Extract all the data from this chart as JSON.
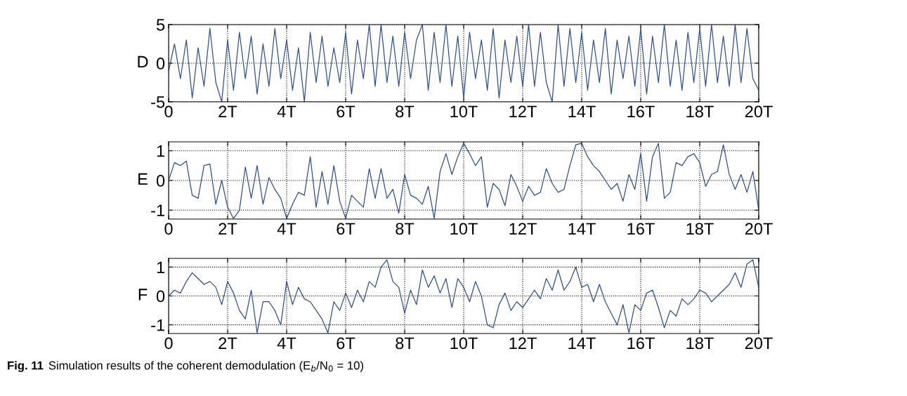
{
  "chart_data": [
    {
      "type": "line",
      "ylabel": "D",
      "xlim": [
        0,
        20
      ],
      "ylim": [
        -5,
        5
      ],
      "yticks": [
        -5,
        0,
        5
      ],
      "grid": true,
      "line_style": "solid",
      "xticks": [
        0,
        {
          "value": 2,
          "label": "2T"
        },
        {
          "value": 4,
          "label": "4T"
        },
        {
          "value": 6,
          "label": "6T"
        },
        {
          "value": 8,
          "label": "8T"
        },
        {
          "value": 10,
          "label": "10T"
        },
        {
          "value": 12,
          "label": "12T"
        },
        {
          "value": 14,
          "label": "14T"
        },
        {
          "value": 16,
          "label": "16T"
        },
        {
          "value": 18,
          "label": "18T"
        },
        {
          "value": 20,
          "label": "20T"
        }
      ],
      "x": [
        0,
        0.2,
        0.4,
        0.6,
        0.8,
        1,
        1.2,
        1.4,
        1.6,
        1.8,
        2,
        2.2,
        2.4,
        2.6,
        2.8,
        3,
        3.2,
        3.4,
        3.6,
        3.8,
        4,
        4.2,
        4.4,
        4.6,
        4.8,
        5,
        5.2,
        5.4,
        5.6,
        5.8,
        6,
        6.2,
        6.4,
        6.6,
        6.8,
        7,
        7.2,
        7.4,
        7.6,
        7.8,
        8,
        8.2,
        8.4,
        8.6,
        8.8,
        9,
        9.2,
        9.4,
        9.6,
        9.8,
        10,
        10.2,
        10.4,
        10.6,
        10.8,
        11,
        11.2,
        11.4,
        11.6,
        11.8,
        12,
        12.2,
        12.4,
        12.6,
        12.8,
        13,
        13.2,
        13.4,
        13.6,
        13.8,
        14,
        14.2,
        14.4,
        14.6,
        14.8,
        15,
        15.2,
        15.4,
        15.6,
        15.8,
        16,
        16.2,
        16.4,
        16.6,
        16.8,
        17,
        17.2,
        17.4,
        17.6,
        17.8,
        18,
        18.2,
        18.4,
        18.6,
        18.8,
        19,
        19.2,
        19.4,
        19.6,
        19.8,
        20
      ],
      "series": [
        {
          "color": "#2b4fa3",
          "values": [
            -1,
            2.5,
            -2,
            3,
            -4.5,
            2,
            -3,
            4.5,
            -2.5,
            -5,
            3,
            -3.5,
            4,
            -2,
            3.5,
            -4,
            2.5,
            -3,
            4.5,
            -2,
            3,
            -3.5,
            2,
            -5,
            4,
            -2.5,
            3.5,
            -3,
            2,
            -2.5,
            4,
            -4,
            3,
            -2,
            5,
            -3,
            5,
            -2.5,
            3.5,
            -3,
            4,
            -2,
            3,
            5,
            -3.5,
            4,
            -2.5,
            5,
            -3,
            3.5,
            -4.5,
            4,
            -2,
            3,
            -3.5,
            4.5,
            -4.5,
            3,
            -2.5,
            3.5,
            -3,
            5,
            -3,
            4,
            -2.5,
            -5,
            5,
            -3,
            4.5,
            -2.5,
            4,
            -3.5,
            3,
            -2.5,
            4.5,
            -4,
            3,
            -2,
            3.5,
            -3,
            4.5,
            -4,
            3.5,
            -2.5,
            5,
            -3,
            3,
            -3.5,
            4,
            -2.5,
            4.5,
            -3,
            5,
            -2.5,
            3.5,
            -3,
            5,
            -2.5,
            4.5,
            -2,
            -3.5
          ]
        }
      ]
    },
    {
      "type": "line",
      "ylabel": "E",
      "xlim": [
        0,
        20
      ],
      "ylim": [
        -1.3,
        1.3
      ],
      "yticks": [
        -1,
        0,
        1
      ],
      "grid": true,
      "line_style": "solid",
      "xticks": [
        0,
        {
          "value": 2,
          "label": "2T"
        },
        {
          "value": 4,
          "label": "4T"
        },
        {
          "value": 6,
          "label": "6T"
        },
        {
          "value": 8,
          "label": "8T"
        },
        {
          "value": 10,
          "label": "10T"
        },
        {
          "value": 12,
          "label": "12T"
        },
        {
          "value": 14,
          "label": "14T"
        },
        {
          "value": 16,
          "label": "16T"
        },
        {
          "value": 18,
          "label": "18T"
        },
        {
          "value": 20,
          "label": "20T"
        }
      ],
      "x": [
        0,
        0.2,
        0.4,
        0.6,
        0.8,
        1,
        1.2,
        1.4,
        1.6,
        1.8,
        2,
        2.2,
        2.4,
        2.6,
        2.8,
        3,
        3.2,
        3.4,
        3.6,
        3.8,
        4,
        4.2,
        4.4,
        4.6,
        4.8,
        5,
        5.2,
        5.4,
        5.6,
        5.8,
        6,
        6.2,
        6.4,
        6.6,
        6.8,
        7,
        7.2,
        7.4,
        7.6,
        7.8,
        8,
        8.2,
        8.4,
        8.6,
        8.8,
        9,
        9.2,
        9.4,
        9.6,
        9.8,
        10,
        10.2,
        10.4,
        10.6,
        10.8,
        11,
        11.2,
        11.4,
        11.6,
        11.8,
        12,
        12.2,
        12.4,
        12.6,
        12.8,
        13,
        13.2,
        13.4,
        13.6,
        13.8,
        14,
        14.2,
        14.4,
        14.6,
        14.8,
        15,
        15.2,
        15.4,
        15.6,
        15.8,
        16,
        16.2,
        16.4,
        16.6,
        16.8,
        17,
        17.2,
        17.4,
        17.6,
        17.8,
        18,
        18.2,
        18.4,
        18.6,
        18.8,
        19,
        19.2,
        19.4,
        19.6,
        19.8,
        20
      ],
      "series": [
        {
          "color": "#2b4fa3",
          "values": [
            0,
            0.6,
            0.5,
            0.65,
            -0.5,
            -0.6,
            0.5,
            0.55,
            -0.8,
            0,
            -0.9,
            -1.28,
            -1,
            0.45,
            -0.6,
            0.5,
            -0.8,
            0.1,
            -0.3,
            -0.6,
            -1.28,
            -0.8,
            -0.4,
            -0.5,
            0.8,
            -0.9,
            0.3,
            -0.8,
            0.5,
            -0.7,
            -1.28,
            -0.5,
            -0.7,
            -0.9,
            0.4,
            -0.6,
            0.4,
            -0.6,
            -0.3,
            -1.1,
            0.2,
            -0.5,
            -0.6,
            -0.8,
            -0.2,
            -1.28,
            0.3,
            0.9,
            0.2,
            0.8,
            1.25,
            0.9,
            0.5,
            0.8,
            -0.9,
            -0.1,
            -0.3,
            -0.85,
            0.2,
            -0.2,
            -0.7,
            -0.2,
            -0.5,
            -0.4,
            0.4,
            -0.1,
            -0.4,
            -0.3,
            0.5,
            1.2,
            1.25,
            0.8,
            0.5,
            0.3,
            0,
            -0.3,
            -0.1,
            -0.7,
            0.2,
            -0.3,
            0.9,
            -0.7,
            0.8,
            1.25,
            -0.6,
            -0.4,
            0.6,
            0.5,
            0.8,
            0.9,
            0.6,
            -0.2,
            0.2,
            0.3,
            1.2,
            0.2,
            -0.3,
            0.2,
            -0.4,
            0.3,
            -1
          ]
        }
      ]
    },
    {
      "type": "line",
      "ylabel": "F",
      "xlim": [
        0,
        20
      ],
      "ylim": [
        -1.3,
        1.3
      ],
      "yticks": [
        -1,
        0,
        1
      ],
      "grid": true,
      "line_style": "solid",
      "xticks": [
        0,
        {
          "value": 2,
          "label": "2T"
        },
        {
          "value": 4,
          "label": "4T"
        },
        {
          "value": 6,
          "label": "6T"
        },
        {
          "value": 8,
          "label": "8T"
        },
        {
          "value": 10,
          "label": "10T"
        },
        {
          "value": 12,
          "label": "12T"
        },
        {
          "value": 14,
          "label": "14T"
        },
        {
          "value": 16,
          "label": "16T"
        },
        {
          "value": 18,
          "label": "18T"
        },
        {
          "value": 20,
          "label": "20T"
        }
      ],
      "x": [
        0,
        0.2,
        0.4,
        0.6,
        0.8,
        1,
        1.2,
        1.4,
        1.6,
        1.8,
        2,
        2.2,
        2.4,
        2.6,
        2.8,
        3,
        3.2,
        3.4,
        3.6,
        3.8,
        4,
        4.2,
        4.4,
        4.6,
        4.8,
        5,
        5.2,
        5.4,
        5.6,
        5.8,
        6,
        6.2,
        6.4,
        6.6,
        6.8,
        7,
        7.2,
        7.4,
        7.6,
        7.8,
        8,
        8.2,
        8.4,
        8.6,
        8.8,
        9,
        9.2,
        9.4,
        9.6,
        9.8,
        10,
        10.2,
        10.4,
        10.6,
        10.8,
        11,
        11.2,
        11.4,
        11.6,
        11.8,
        12,
        12.2,
        12.4,
        12.6,
        12.8,
        13,
        13.2,
        13.4,
        13.6,
        13.8,
        14,
        14.2,
        14.4,
        14.6,
        14.8,
        15,
        15.2,
        15.4,
        15.6,
        15.8,
        16,
        16.2,
        16.4,
        16.6,
        16.8,
        17,
        17.2,
        17.4,
        17.6,
        17.8,
        18,
        18.2,
        18.4,
        18.6,
        18.8,
        19,
        19.2,
        19.4,
        19.6,
        19.8,
        20
      ],
      "series": [
        {
          "color": "#2b4fa3",
          "values": [
            0,
            0.2,
            0.1,
            0.5,
            0.8,
            0.6,
            0.4,
            0.5,
            0.3,
            -0.3,
            0.5,
            0.1,
            -0.5,
            -0.8,
            0.2,
            -1.28,
            -0.2,
            -0.2,
            -0.5,
            -1,
            0.5,
            -0.3,
            0.3,
            -0.1,
            -0.2,
            -0.5,
            -0.8,
            -1.28,
            -0.2,
            -0.5,
            0.1,
            -0.4,
            0.2,
            -0.2,
            0.5,
            0.3,
            1,
            1.25,
            0.5,
            0.3,
            -0.6,
            0.2,
            -0.3,
            0.9,
            0.3,
            0.7,
            0.1,
            0.6,
            -0.4,
            0.6,
            0.3,
            -0.2,
            0.5,
            0,
            -1,
            -1.1,
            -0.3,
            0.1,
            -0.5,
            -0.2,
            -0.4,
            -0.1,
            0.2,
            -0.1,
            0.6,
            0.2,
            0.9,
            0.2,
            0.5,
            1,
            0.3,
            0.4,
            -0.2,
            0.4,
            -0.2,
            -0.6,
            -1,
            -0.3,
            -1.28,
            -0.3,
            -0.5,
            0.1,
            0.2,
            -0.4,
            -1.1,
            -0.5,
            -0.7,
            -0.1,
            -0.3,
            -0.1,
            0.2,
            0.1,
            -0.2,
            0,
            0.2,
            0.4,
            0.8,
            0.3,
            1.1,
            1.25,
            0.3
          ]
        }
      ],
      "annotations": [
        "Fig. 11",
        "Simulation results of the coherent demodulation (E$_{b}$/N$_{0}$ = 10)"
      ]
    }
  ]
}
